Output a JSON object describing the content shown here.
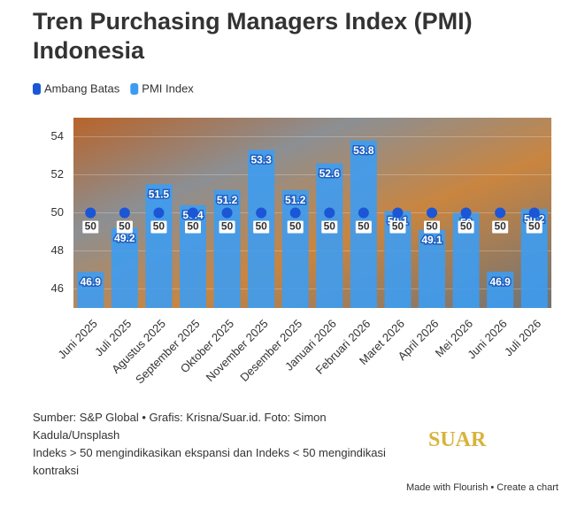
{
  "chart_data": {
    "type": "bar",
    "title": "Tren Purchasing Managers Index (PMI) Indonesia",
    "categories": [
      "Juni 2025",
      "Juli 2025",
      "Agustus 2025",
      "September 2025",
      "Oktober 2025",
      "November 2025",
      "Desember 2025",
      "Januari 2026",
      "Februari 2026",
      "Maret 2026",
      "April 2026",
      "Mei 2026",
      "Juni 2026",
      "Juli 2026"
    ],
    "series": [
      {
        "name": "Ambang Batas",
        "type": "scatter",
        "color": "#1a56d6",
        "values": [
          50,
          50,
          50,
          50,
          50,
          50,
          50,
          50,
          50,
          50,
          50,
          50,
          50,
          50
        ]
      },
      {
        "name": "PMI Index",
        "type": "bar",
        "color": "#3d9cf2",
        "values": [
          46.9,
          49.2,
          51.5,
          50.4,
          51.2,
          53.3,
          51.2,
          52.6,
          53.8,
          50.1,
          49.1,
          50,
          46.9,
          50.2
        ]
      }
    ],
    "ylim": [
      45,
      55
    ],
    "yticks": [
      46,
      48,
      50,
      52,
      54
    ],
    "source": "Sumber: S&P Global • Grafis: Krisna/Suar.id. Foto: Simon Kadula/Unsplash",
    "note": "Indeks > 50 mengindikasikan ekspansi dan Indeks < 50 mengindikasi kontraksi",
    "logo": "SUAR",
    "credit": "Made with Flourish • Create a chart"
  }
}
